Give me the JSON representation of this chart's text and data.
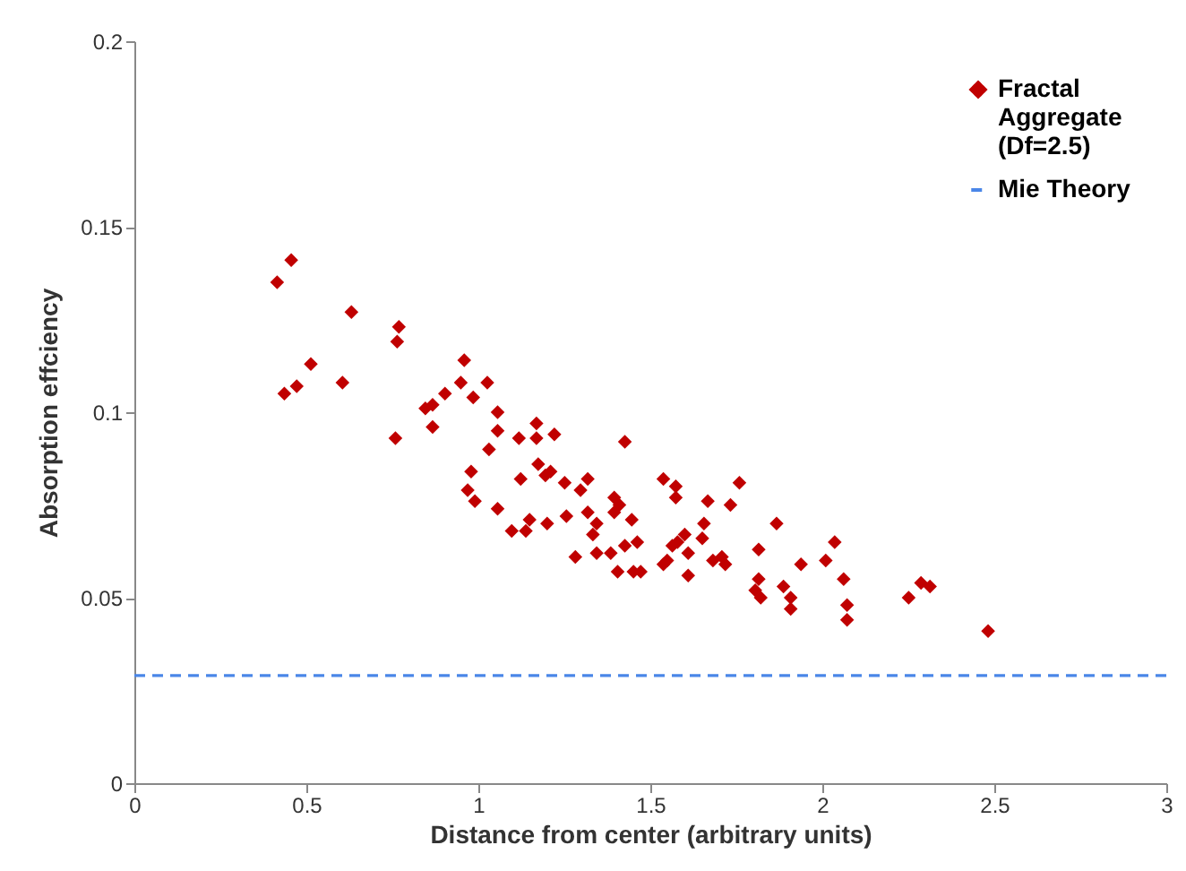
{
  "chart_data": {
    "type": "scatter",
    "xlabel": "Distance from center (arbitrary units)",
    "ylabel": "Absorption effciency",
    "xlim": [
      0,
      3
    ],
    "ylim": [
      0,
      0.2
    ],
    "xticks": [
      0,
      0.5,
      1,
      1.5,
      2,
      2.5,
      3
    ],
    "yticks": [
      0,
      0.05,
      0.1,
      0.15,
      0.2
    ],
    "grid": false,
    "legend": "top right",
    "series": [
      {
        "name": "Fractal Aggregate (Df=2.5)",
        "marker": "diamond",
        "color": "#c00000",
        "x": [
          0.415,
          0.456,
          0.436,
          0.472,
          0.513,
          0.605,
          0.631,
          0.769,
          0.764,
          0.759,
          0.959,
          0.949,
          1.026,
          0.903,
          0.985,
          0.867,
          0.846,
          0.867,
          1.056,
          1.056,
          1.031,
          1.118,
          1.169,
          1.169,
          1.221,
          1.426,
          1.174,
          1.123,
          1.195,
          1.21,
          1.251,
          1.318,
          1.297,
          0.979,
          0.969,
          0.99,
          1.056,
          1.149,
          1.2,
          1.097,
          1.138,
          1.256,
          1.318,
          1.344,
          1.395,
          1.41,
          1.333,
          1.282,
          1.344,
          1.385,
          1.426,
          1.462,
          1.405,
          1.451,
          1.538,
          1.574,
          1.574,
          1.759,
          1.667,
          1.733,
          1.395,
          1.446,
          1.472,
          1.6,
          1.579,
          1.564,
          1.656,
          1.651,
          1.61,
          1.538,
          1.549,
          1.61,
          1.682,
          1.708,
          1.718,
          1.867,
          1.815,
          1.938,
          2.01,
          2.036,
          1.815,
          1.805,
          1.821,
          1.887,
          1.908,
          1.908,
          2.062,
          2.072,
          2.072,
          2.251,
          2.287,
          2.313,
          2.482
        ],
        "values": [
          0.135,
          0.141,
          0.105,
          0.107,
          0.113,
          0.108,
          0.127,
          0.123,
          0.119,
          0.093,
          0.114,
          0.108,
          0.108,
          0.105,
          0.104,
          0.102,
          0.101,
          0.096,
          0.1,
          0.095,
          0.09,
          0.093,
          0.097,
          0.093,
          0.094,
          0.092,
          0.086,
          0.082,
          0.083,
          0.084,
          0.081,
          0.082,
          0.079,
          0.084,
          0.079,
          0.076,
          0.074,
          0.071,
          0.07,
          0.068,
          0.068,
          0.072,
          0.073,
          0.07,
          0.077,
          0.075,
          0.067,
          0.061,
          0.062,
          0.062,
          0.064,
          0.065,
          0.057,
          0.057,
          0.082,
          0.08,
          0.077,
          0.081,
          0.076,
          0.075,
          0.073,
          0.071,
          0.057,
          0.067,
          0.065,
          0.064,
          0.07,
          0.066,
          0.062,
          0.059,
          0.06,
          0.056,
          0.06,
          0.061,
          0.059,
          0.07,
          0.063,
          0.059,
          0.06,
          0.065,
          0.055,
          0.052,
          0.05,
          0.053,
          0.05,
          0.047,
          0.055,
          0.048,
          0.044,
          0.05,
          0.054,
          0.053,
          0.041
        ]
      },
      {
        "name": "Mie Theory",
        "type": "line",
        "line_style": "dashed",
        "color": "#4a86e8",
        "x": [
          0,
          3
        ],
        "values": [
          0.029,
          0.029
        ]
      }
    ]
  }
}
